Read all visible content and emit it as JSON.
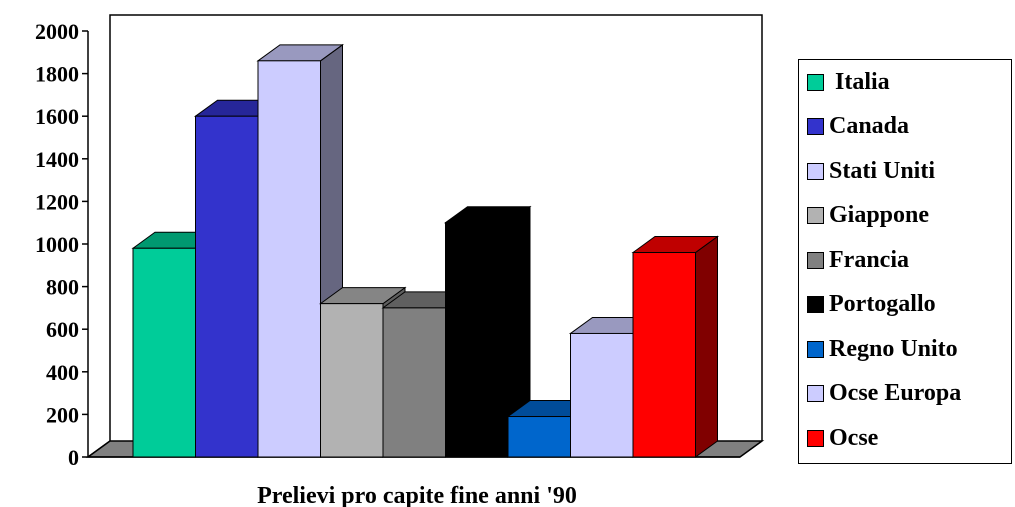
{
  "chart_data": {
    "type": "bar",
    "title": "",
    "xlabel": "Prelievi pro capite fine anni '90",
    "ylabel": "",
    "ylim": [
      0,
      2000
    ],
    "yticks": [
      "0",
      "200",
      "400",
      "600",
      "800",
      "1000",
      "1200",
      "1400",
      "1600",
      "1800",
      "2000"
    ],
    "grid": false,
    "legend_position": "right",
    "categories": [
      "Italia",
      "Canada",
      "Stati Uniti",
      "Giappone",
      "Francia",
      "Portogallo",
      "Regno Unito",
      "Ocse Europa",
      "Ocse"
    ],
    "legend_labels": [
      " Italia",
      "Canada",
      "Stati Uniti",
      "Giappone",
      "Francia",
      "Portogallo",
      "Regno Unito",
      "Ocse Europa",
      "Ocse"
    ],
    "values": [
      980,
      1600,
      1860,
      720,
      700,
      1100,
      190,
      580,
      960
    ],
    "colors": [
      "#00CC99",
      "#3333CC",
      "#CCCCFF",
      "#B2B2B2",
      "#808080",
      "#000000",
      "#0066CC",
      "#CCCCFF",
      "#FF0000"
    ],
    "top_colors": [
      "#009970",
      "#262699",
      "#9999BF",
      "#858585",
      "#606060",
      "#000000",
      "#004C99",
      "#9999BF",
      "#BF0000"
    ],
    "side_colors": [
      "#006B50",
      "#1A1A6B",
      "#666680",
      "#5E5E5E",
      "#404040",
      "#000000",
      "#00336B",
      "#666680",
      "#800000"
    ]
  }
}
